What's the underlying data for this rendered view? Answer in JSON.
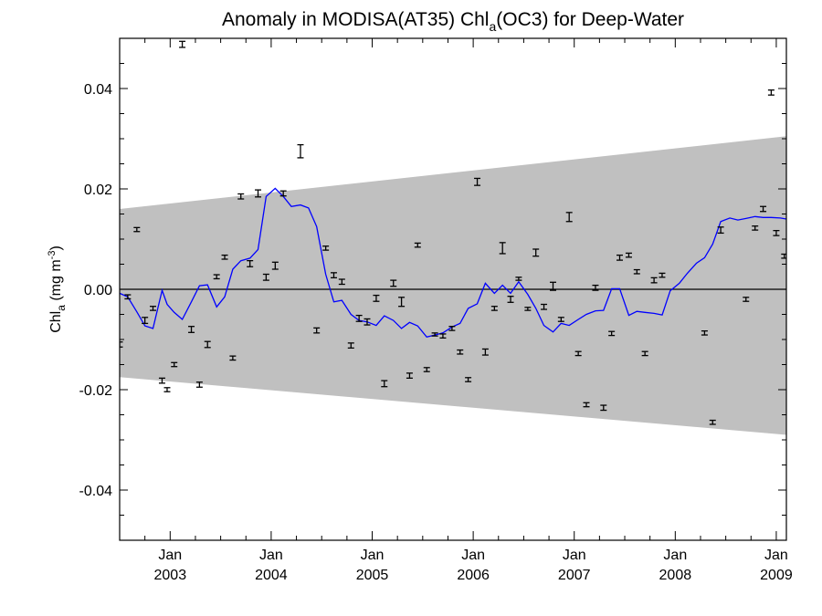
{
  "chart_data": {
    "type": "scatter",
    "title": "Anomaly in MODISA(AT35) Chl",
    "title_subscript": "a",
    "title_suffix": "(OC3) for Deep-Water",
    "ylabel": "Chl",
    "ylabel_subscript": "a",
    "ylabel_units_prefix": " (mg m",
    "ylabel_units_superscript": "-3",
    "ylabel_units_suffix": ")",
    "xlim": [
      2002.5,
      2009.1
    ],
    "ylim": [
      -0.05,
      0.05
    ],
    "y_ticks": [
      -0.04,
      -0.02,
      0.0,
      0.02,
      0.04
    ],
    "y_tick_labels": [
      "-0.04",
      "-0.02",
      "0.00",
      "0.02",
      "0.04"
    ],
    "x_ticks": [
      2003,
      2004,
      2005,
      2006,
      2007,
      2008,
      2009
    ],
    "x_tick_month_label": "Jan",
    "x_tick_year_labels": [
      "2003",
      "2004",
      "2005",
      "2006",
      "2007",
      "2008",
      "2009"
    ],
    "zero_line": 0.0,
    "band": {
      "color": "#c0c0c0",
      "upper": [
        [
          2002.5,
          0.016
        ],
        [
          2009.1,
          0.0305
        ]
      ],
      "lower": [
        [
          2002.5,
          -0.0175
        ],
        [
          2009.1,
          -0.029
        ]
      ]
    },
    "series": [
      {
        "type": "line",
        "color": "#0000ff",
        "x": [
          2002.5,
          2002.58,
          2002.67,
          2002.75,
          2002.83,
          2002.92,
          2002.97,
          2003.04,
          2003.12,
          2003.21,
          2003.29,
          2003.37,
          2003.46,
          2003.54,
          2003.62,
          2003.7,
          2003.79,
          2003.87,
          2003.95,
          2004.04,
          2004.12,
          2004.2,
          2004.29,
          2004.37,
          2004.45,
          2004.54,
          2004.62,
          2004.7,
          2004.79,
          2004.87,
          2004.95,
          2005.04,
          2005.12,
          2005.21,
          2005.29,
          2005.37,
          2005.45,
          2005.54,
          2005.62,
          2005.7,
          2005.79,
          2005.87,
          2005.95,
          2006.04,
          2006.12,
          2006.21,
          2006.29,
          2006.37,
          2006.45,
          2006.54,
          2006.62,
          2006.7,
          2006.79,
          2006.87,
          2006.95,
          2007.04,
          2007.12,
          2007.21,
          2007.29,
          2007.37,
          2007.45,
          2007.54,
          2007.62,
          2007.7,
          2007.79,
          2007.87,
          2007.95,
          2008.04,
          2008.12,
          2008.21,
          2008.29,
          2008.37,
          2008.45,
          2008.54,
          2008.62,
          2008.7,
          2008.79,
          2008.87,
          2008.95,
          2009.04,
          2009.1
        ],
        "y": [
          -0.0008,
          -0.0015,
          -0.0045,
          -0.0073,
          -0.0078,
          -0.0002,
          -0.003,
          -0.0046,
          -0.006,
          -0.0025,
          0.0007,
          0.0009,
          -0.0035,
          -0.0015,
          0.004,
          0.0057,
          0.0062,
          0.0079,
          0.0185,
          0.0201,
          0.0185,
          0.0165,
          0.0168,
          0.0162,
          0.0125,
          0.003,
          -0.0025,
          -0.0022,
          -0.005,
          -0.0062,
          -0.0065,
          -0.0072,
          -0.0053,
          -0.0062,
          -0.0078,
          -0.0066,
          -0.0073,
          -0.0095,
          -0.0091,
          -0.0087,
          -0.0075,
          -0.0068,
          -0.0038,
          -0.0029,
          0.0012,
          -0.0008,
          0.0008,
          -0.0008,
          0.0015,
          -0.001,
          -0.0038,
          -0.0072,
          -0.0085,
          -0.0068,
          -0.0072,
          -0.006,
          -0.005,
          -0.0043,
          -0.0042,
          0.0001,
          0.0001,
          -0.0052,
          -0.0044,
          -0.0046,
          -0.0048,
          -0.0051,
          -0.0003,
          0.0012,
          0.0032,
          0.0052,
          0.0063,
          0.009,
          0.0135,
          0.0142,
          0.0138,
          0.0141,
          0.0145,
          0.0143,
          0.0143,
          0.0142,
          0.014
        ]
      },
      {
        "type": "errorbar",
        "color": "#000000",
        "points": [
          [
            2002.5,
            -0.011,
            0.0005
          ],
          [
            2002.58,
            -0.0015,
            0.0004
          ],
          [
            2002.67,
            0.0119,
            0.0004
          ],
          [
            2002.75,
            -0.0062,
            0.0006
          ],
          [
            2002.83,
            -0.0038,
            0.0004
          ],
          [
            2002.92,
            -0.0182,
            0.0005
          ],
          [
            2002.97,
            -0.02,
            0.0004
          ],
          [
            2003.04,
            -0.015,
            0.0004
          ],
          [
            2003.12,
            0.0488,
            0.0006
          ],
          [
            2003.21,
            -0.008,
            0.0006
          ],
          [
            2003.29,
            -0.019,
            0.0005
          ],
          [
            2003.37,
            -0.011,
            0.0006
          ],
          [
            2003.46,
            0.0025,
            0.0004
          ],
          [
            2003.54,
            0.0064,
            0.0004
          ],
          [
            2003.62,
            -0.0137,
            0.0004
          ],
          [
            2003.7,
            0.0185,
            0.0005
          ],
          [
            2003.79,
            0.0051,
            0.0006
          ],
          [
            2003.87,
            0.0191,
            0.0007
          ],
          [
            2003.95,
            0.0024,
            0.0006
          ],
          [
            2004.04,
            0.0047,
            0.0007
          ],
          [
            2004.12,
            0.0191,
            0.0005
          ],
          [
            2004.29,
            0.0275,
            0.0013
          ],
          [
            2004.45,
            -0.0082,
            0.0005
          ],
          [
            2004.54,
            0.0082,
            0.0004
          ],
          [
            2004.62,
            0.0028,
            0.0005
          ],
          [
            2004.7,
            0.0015,
            0.0005
          ],
          [
            2004.79,
            -0.0112,
            0.0005
          ],
          [
            2004.87,
            -0.0058,
            0.0006
          ],
          [
            2004.95,
            -0.0065,
            0.0006
          ],
          [
            2005.04,
            -0.0018,
            0.0006
          ],
          [
            2005.12,
            -0.0188,
            0.0006
          ],
          [
            2005.21,
            0.0012,
            0.0006
          ],
          [
            2005.29,
            -0.0025,
            0.0009
          ],
          [
            2005.37,
            -0.0172,
            0.0005
          ],
          [
            2005.45,
            0.0088,
            0.0004
          ],
          [
            2005.54,
            -0.016,
            0.0004
          ],
          [
            2005.62,
            -0.009,
            0.0003
          ],
          [
            2005.7,
            -0.0093,
            0.0004
          ],
          [
            2005.79,
            -0.0078,
            0.0004
          ],
          [
            2005.87,
            -0.0125,
            0.0004
          ],
          [
            2005.95,
            -0.018,
            0.0004
          ],
          [
            2006.04,
            0.0214,
            0.0007
          ],
          [
            2006.12,
            -0.0125,
            0.0006
          ],
          [
            2006.21,
            -0.0038,
            0.0004
          ],
          [
            2006.29,
            0.0082,
            0.0011
          ],
          [
            2006.37,
            -0.002,
            0.0006
          ],
          [
            2006.45,
            0.0021,
            0.0003
          ],
          [
            2006.54,
            -0.0039,
            0.0003
          ],
          [
            2006.62,
            0.0073,
            0.0007
          ],
          [
            2006.7,
            -0.0035,
            0.0005
          ],
          [
            2006.79,
            0.0006,
            0.0008
          ],
          [
            2006.87,
            -0.006,
            0.0004
          ],
          [
            2006.95,
            0.0144,
            0.0009
          ],
          [
            2007.04,
            -0.0128,
            0.0004
          ],
          [
            2007.12,
            -0.023,
            0.0004
          ],
          [
            2007.21,
            0.0003,
            0.0005
          ],
          [
            2007.29,
            -0.0236,
            0.0005
          ],
          [
            2007.37,
            -0.0088,
            0.0004
          ],
          [
            2007.45,
            0.0063,
            0.0005
          ],
          [
            2007.54,
            0.0068,
            0.0004
          ],
          [
            2007.62,
            0.0035,
            0.0004
          ],
          [
            2007.7,
            -0.0128,
            0.0004
          ],
          [
            2007.79,
            0.0018,
            0.0005
          ],
          [
            2007.87,
            0.0028,
            0.0004
          ],
          [
            2008.29,
            -0.0087,
            0.0004
          ],
          [
            2008.37,
            -0.0265,
            0.0004
          ],
          [
            2008.45,
            0.0118,
            0.0006
          ],
          [
            2008.7,
            -0.002,
            0.0004
          ],
          [
            2008.79,
            0.0122,
            0.0004
          ],
          [
            2008.87,
            0.016,
            0.0005
          ],
          [
            2008.95,
            0.0392,
            0.0005
          ],
          [
            2009.0,
            0.0112,
            0.0005
          ],
          [
            2009.08,
            0.0066,
            0.0004
          ]
        ]
      }
    ]
  }
}
